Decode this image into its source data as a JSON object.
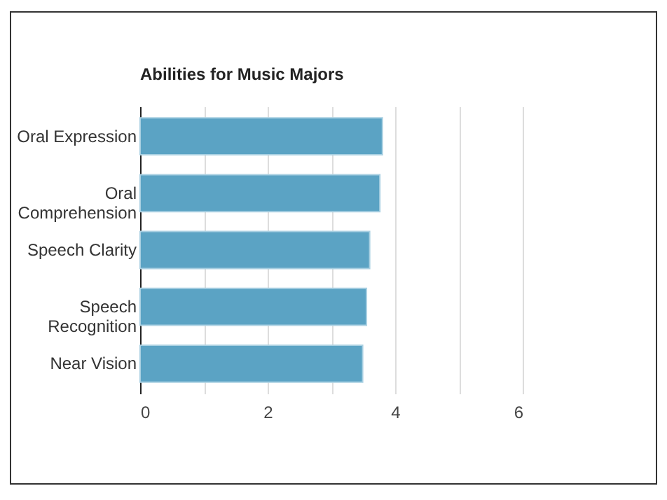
{
  "chart_data": {
    "type": "bar",
    "orientation": "horizontal",
    "title": "Abilities for Music Majors",
    "categories": [
      "Oral Expression",
      "Oral Comprehension",
      "Speech Clarity",
      "Speech Recognition",
      "Near Vision"
    ],
    "values": [
      3.8,
      3.76,
      3.6,
      3.55,
      3.49
    ],
    "color": "#5ba3c4",
    "xlim": [
      0,
      6
    ],
    "xticks": [
      0,
      {
        "value": 1,
        "label": null
      },
      2,
      {
        "value": 3,
        "label": null
      },
      4,
      {
        "value": 5,
        "label": null
      },
      6
    ],
    "grid": "x"
  }
}
